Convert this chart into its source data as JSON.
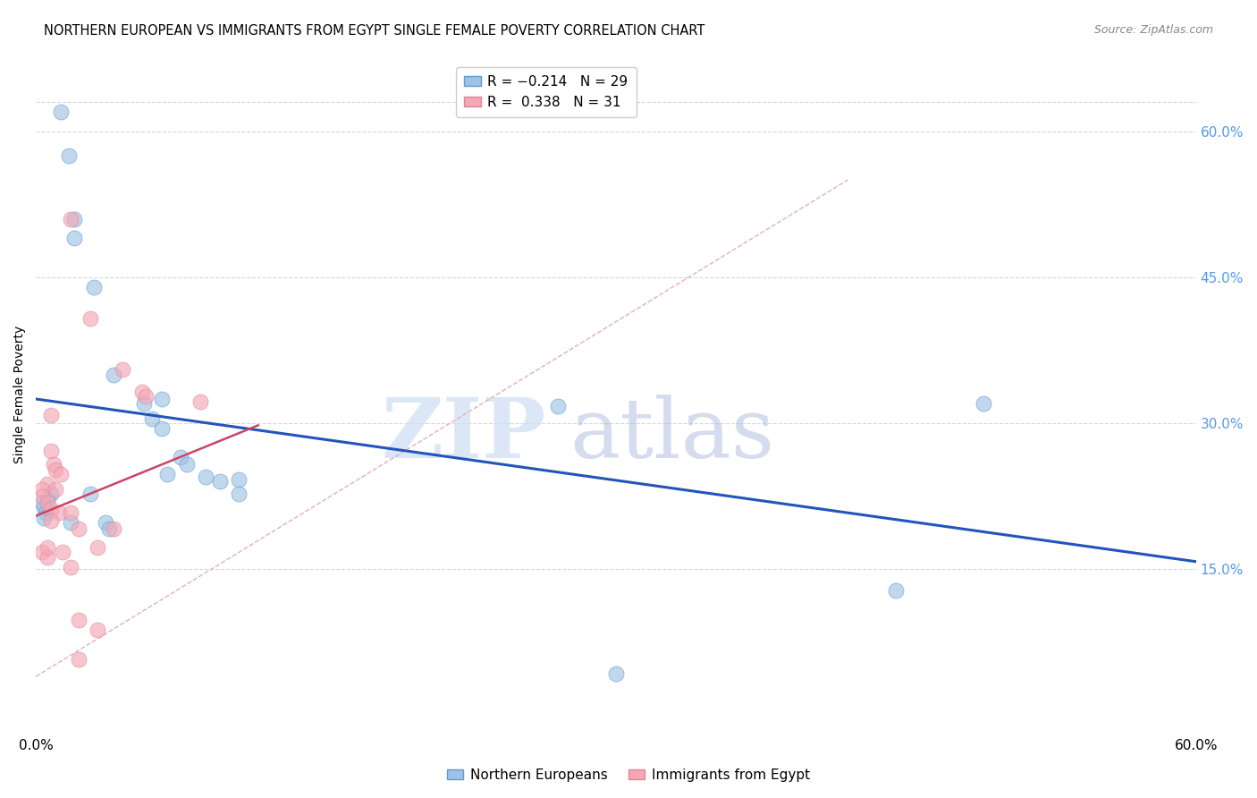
{
  "title": "NORTHERN EUROPEAN VS IMMIGRANTS FROM EGYPT SINGLE FEMALE POVERTY CORRELATION CHART",
  "source": "Source: ZipAtlas.com",
  "ylabel": "Single Female Poverty",
  "xlim": [
    0.0,
    0.6
  ],
  "ylim": [
    -0.02,
    0.68
  ],
  "xtick_positions": [
    0.0,
    0.1,
    0.2,
    0.3,
    0.4,
    0.5,
    0.6
  ],
  "xtick_labels": [
    "0.0%",
    "",
    "",
    "",
    "",
    "",
    "60.0%"
  ],
  "ytick_positions": [
    0.15,
    0.3,
    0.45,
    0.6
  ],
  "ytick_labels": [
    "15.0%",
    "30.0%",
    "45.0%",
    "60.0%"
  ],
  "blue_points": [
    [
      0.013,
      0.62
    ],
    [
      0.017,
      0.575
    ],
    [
      0.02,
      0.51
    ],
    [
      0.02,
      0.49
    ],
    [
      0.03,
      0.44
    ],
    [
      0.04,
      0.35
    ],
    [
      0.056,
      0.32
    ],
    [
      0.06,
      0.305
    ],
    [
      0.065,
      0.325
    ],
    [
      0.065,
      0.295
    ],
    [
      0.075,
      0.265
    ],
    [
      0.078,
      0.258
    ],
    [
      0.068,
      0.248
    ],
    [
      0.088,
      0.245
    ],
    [
      0.095,
      0.24
    ],
    [
      0.105,
      0.242
    ],
    [
      0.105,
      0.228
    ],
    [
      0.028,
      0.228
    ],
    [
      0.008,
      0.228
    ],
    [
      0.006,
      0.222
    ],
    [
      0.003,
      0.218
    ],
    [
      0.004,
      0.214
    ],
    [
      0.005,
      0.208
    ],
    [
      0.004,
      0.203
    ],
    [
      0.018,
      0.198
    ],
    [
      0.036,
      0.198
    ],
    [
      0.038,
      0.192
    ],
    [
      0.49,
      0.32
    ],
    [
      0.27,
      0.318
    ],
    [
      0.445,
      0.128
    ],
    [
      0.3,
      0.043
    ]
  ],
  "pink_points": [
    [
      0.028,
      0.408
    ],
    [
      0.018,
      0.51
    ],
    [
      0.045,
      0.355
    ],
    [
      0.055,
      0.332
    ],
    [
      0.057,
      0.328
    ],
    [
      0.085,
      0.322
    ],
    [
      0.008,
      0.308
    ],
    [
      0.008,
      0.272
    ],
    [
      0.009,
      0.258
    ],
    [
      0.01,
      0.252
    ],
    [
      0.013,
      0.248
    ],
    [
      0.006,
      0.238
    ],
    [
      0.003,
      0.232
    ],
    [
      0.01,
      0.232
    ],
    [
      0.003,
      0.225
    ],
    [
      0.006,
      0.218
    ],
    [
      0.008,
      0.212
    ],
    [
      0.012,
      0.208
    ],
    [
      0.018,
      0.208
    ],
    [
      0.008,
      0.2
    ],
    [
      0.022,
      0.192
    ],
    [
      0.04,
      0.192
    ],
    [
      0.032,
      0.172
    ],
    [
      0.003,
      0.168
    ],
    [
      0.006,
      0.162
    ],
    [
      0.018,
      0.152
    ],
    [
      0.022,
      0.098
    ],
    [
      0.032,
      0.088
    ],
    [
      0.022,
      0.058
    ],
    [
      0.006,
      0.172
    ],
    [
      0.014,
      0.168
    ]
  ],
  "blue_line": {
    "x": [
      0.0,
      0.6
    ],
    "y": [
      0.325,
      0.158
    ]
  },
  "pink_line": {
    "x": [
      0.0,
      0.115
    ],
    "y": [
      0.205,
      0.298
    ]
  },
  "pink_dashed": {
    "x": [
      0.0,
      0.42
    ],
    "y": [
      0.04,
      0.55
    ]
  },
  "watermark_zip": "ZIP",
  "watermark_atlas": "atlas",
  "background_color": "#ffffff",
  "grid_color": "#d8d8d8",
  "blue_color": "#9DC3E6",
  "pink_color": "#F4A7B5",
  "blue_edge_color": "#6699CC",
  "pink_edge_color": "#DD8899",
  "blue_line_color": "#2255BB",
  "pink_line_color": "#CC4466",
  "pink_dashed_color": "#E0B0BB",
  "right_tick_color": "#5599EE"
}
